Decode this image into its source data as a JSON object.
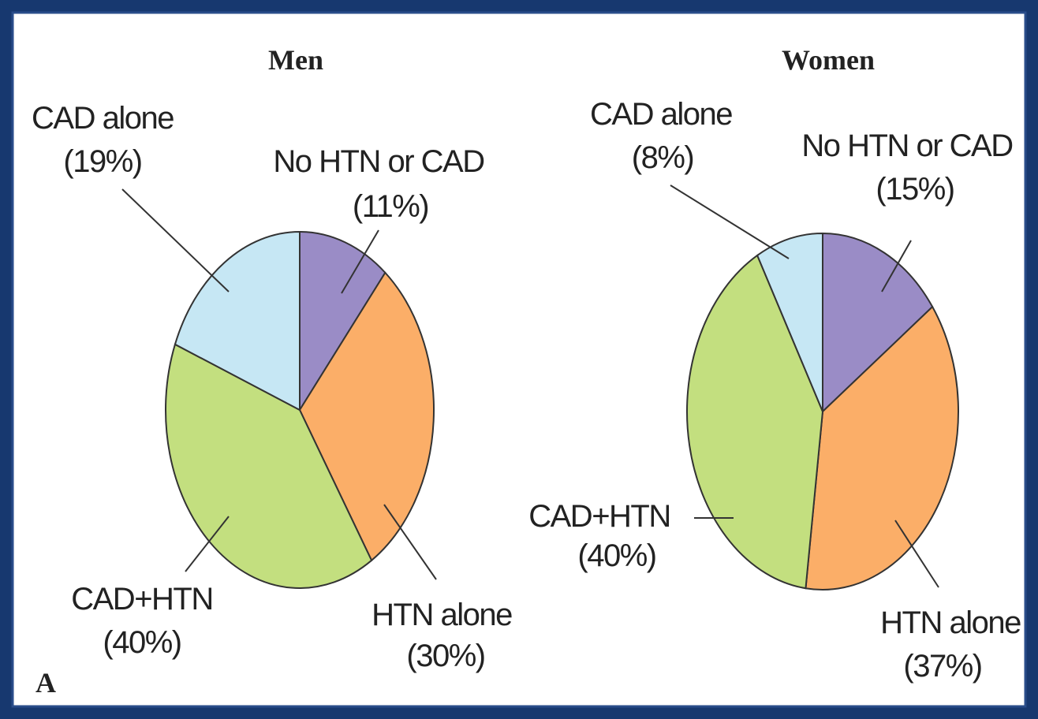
{
  "chart_data": [
    {
      "type": "pie",
      "title": "Men",
      "categories": [
        "No HTN or CAD",
        "HTN alone",
        "CAD+HTN",
        "CAD alone"
      ],
      "values": [
        11,
        30,
        40,
        19
      ],
      "value_labels": [
        "(11%)",
        "(30%)",
        "(40%)",
        "(19%)"
      ],
      "colors": [
        "#9a8cc6",
        "#fbae68",
        "#c3df7f",
        "#c6e7f4"
      ]
    },
    {
      "type": "pie",
      "title": "Women",
      "categories": [
        "No HTN or CAD",
        "HTN alone",
        "CAD+HTN",
        "CAD alone"
      ],
      "values": [
        15,
        37,
        40,
        8
      ],
      "value_labels": [
        "(15%)",
        "(37%)",
        "(40%)",
        "(8%)"
      ],
      "colors": [
        "#9a8cc6",
        "#fbae68",
        "#c3df7f",
        "#c6e7f4"
      ]
    }
  ],
  "panel_label": "A"
}
